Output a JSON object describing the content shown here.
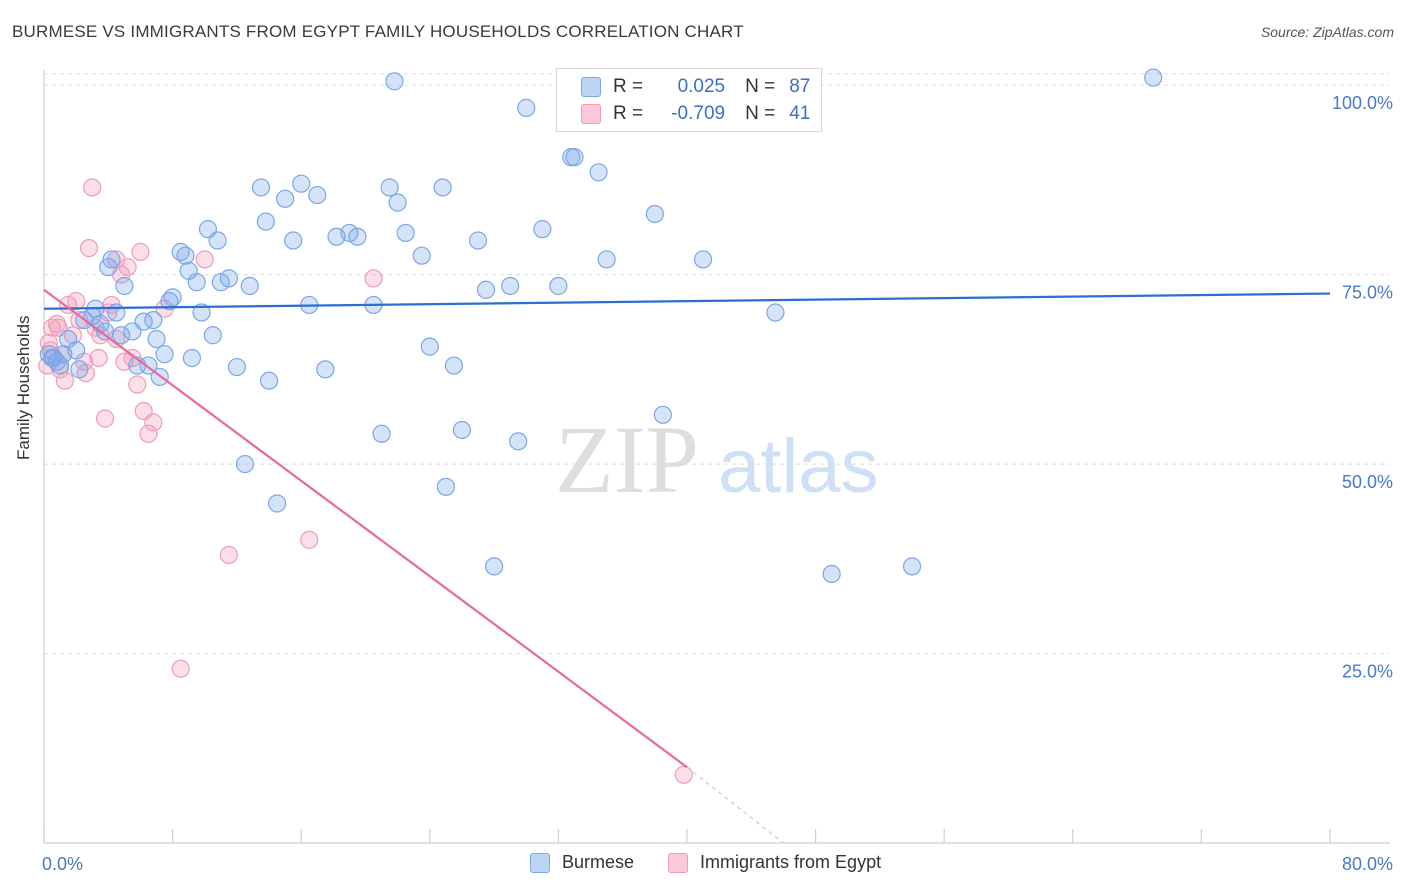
{
  "header": {
    "title": "BURMESE VS IMMIGRANTS FROM EGYPT FAMILY HOUSEHOLDS CORRELATION CHART",
    "source": "Source: ZipAtlas.com"
  },
  "watermark": {
    "zip": "ZIP",
    "atlas": "atlas"
  },
  "legend_top": {
    "rows": [
      {
        "r_label": "R =",
        "r_value": "0.025",
        "n_label": "N =",
        "n_value": "87"
      },
      {
        "r_label": "R =",
        "r_value": "-0.709",
        "n_label": "N =",
        "n_value": "41"
      }
    ]
  },
  "legend_bottom": {
    "items": [
      "Burmese",
      "Immigrants from Egypt"
    ]
  },
  "chart_data": {
    "type": "scatter",
    "title": "BURMESE VS IMMIGRANTS FROM EGYPT FAMILY HOUSEHOLDS CORRELATION CHART",
    "xlabel": "",
    "ylabel": "Family Households",
    "xlim": [
      0,
      80
    ],
    "ylim": [
      0,
      102
    ],
    "x_tick_labels": [
      "0.0%",
      "80.0%"
    ],
    "y_tick_labels": [
      "100.0%",
      "75.0%",
      "50.0%",
      "25.0%"
    ],
    "y_ticks": [
      100,
      75,
      50,
      25
    ],
    "grid": true,
    "colors": {
      "burmese": "#7aa7e8",
      "egypt": "#f29bb8",
      "burmese_line": "#2b6fd0",
      "egypt_line": "#e8699a"
    },
    "series": [
      {
        "name": "Burmese",
        "x": [
          0.3,
          0.5,
          0.8,
          1.2,
          1.5,
          2.0,
          2.5,
          3.0,
          3.2,
          3.5,
          3.8,
          4.0,
          4.2,
          4.5,
          5.0,
          5.5,
          5.8,
          6.2,
          6.5,
          7.0,
          7.5,
          7.8,
          8.0,
          8.5,
          9.0,
          9.5,
          9.8,
          10.2,
          10.8,
          11.0,
          11.5,
          12.0,
          12.8,
          13.5,
          13.8,
          14.0,
          15.0,
          16.0,
          16.5,
          17.0,
          17.5,
          19.0,
          19.5,
          21.0,
          21.5,
          22.0,
          22.5,
          23.5,
          24.0,
          25.0,
          25.5,
          26.0,
          27.5,
          28.0,
          29.5,
          30.0,
          31.0,
          32.0,
          33.0,
          34.5,
          35.0,
          38.0,
          41.0,
          49.0,
          54.0,
          69.0,
          7.2,
          8.8,
          10.5,
          12.5,
          14.5,
          18.2,
          20.5,
          24.8,
          27.0,
          29.0,
          32.8,
          38.5,
          45.5,
          1.0,
          2.2,
          4.8,
          6.8,
          9.2,
          15.5,
          21.8,
          0.6
        ],
        "y": [
          64.5,
          64.0,
          63.5,
          64.5,
          66.5,
          65.0,
          69.0,
          69.5,
          70.5,
          68.5,
          67.5,
          76.0,
          77.0,
          70.0,
          73.5,
          67.5,
          63.0,
          68.8,
          63.0,
          66.5,
          64.5,
          71.5,
          72.0,
          78.0,
          75.5,
          74.0,
          70.0,
          81.0,
          79.5,
          74.0,
          74.5,
          62.8,
          73.5,
          86.5,
          82.0,
          61.0,
          85.0,
          87.0,
          71.0,
          85.5,
          62.5,
          80.5,
          80.0,
          54.0,
          86.5,
          84.5,
          80.5,
          77.5,
          65.5,
          47.0,
          63.0,
          54.5,
          73.0,
          36.5,
          53.0,
          97.0,
          81.0,
          73.5,
          90.5,
          88.5,
          77.0,
          83.0,
          77.0,
          35.5,
          36.5,
          101.0,
          61.5,
          77.5,
          67.0,
          50.0,
          44.8,
          80.0,
          71.0,
          86.5,
          79.5,
          73.5,
          90.5,
          56.5,
          70.0,
          63.0,
          62.5,
          67.0,
          69.0,
          64.0,
          79.5,
          100.5,
          64.0
        ]
      },
      {
        "name": "Immigrants from Egypt",
        "x": [
          0.2,
          0.3,
          0.5,
          0.8,
          1.0,
          1.2,
          1.5,
          1.8,
          2.0,
          2.2,
          2.5,
          2.8,
          3.0,
          3.2,
          3.5,
          3.8,
          4.0,
          4.2,
          4.5,
          5.0,
          5.2,
          5.5,
          6.0,
          6.2,
          6.5,
          7.5,
          8.5,
          10.0,
          11.5,
          16.5,
          20.5,
          39.8,
          4.5,
          2.6,
          0.4,
          1.3,
          3.4,
          4.8,
          5.8,
          6.8,
          0.9
        ],
        "y": [
          63.0,
          66.0,
          68.0,
          68.5,
          62.5,
          64.5,
          71.0,
          67.0,
          71.5,
          69.0,
          63.5,
          78.5,
          86.5,
          68.0,
          67.0,
          56.0,
          70.0,
          71.0,
          77.0,
          63.5,
          76.0,
          64.0,
          78.0,
          57.0,
          54.0,
          70.5,
          23.0,
          77.0,
          38.0,
          40.0,
          74.5,
          9.0,
          66.5,
          62.0,
          65.0,
          61.0,
          64.0,
          75.0,
          60.5,
          55.5,
          68.0
        ]
      }
    ],
    "trend_lines": [
      {
        "series": "Burmese",
        "x": [
          0,
          80
        ],
        "y": [
          70.5,
          72.5
        ]
      },
      {
        "series": "Immigrants from Egypt",
        "x": [
          0,
          40
        ],
        "y": [
          73,
          10
        ],
        "dashed_extension": {
          "x": [
            40,
            46
          ],
          "y": [
            10,
            0
          ]
        }
      }
    ]
  }
}
